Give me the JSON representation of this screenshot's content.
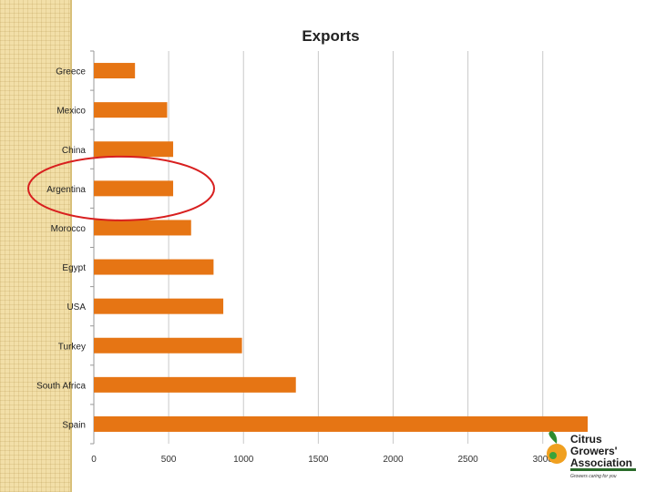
{
  "chart_data": {
    "type": "bar",
    "orientation": "horizontal",
    "title": "Exports",
    "xlabel": "",
    "ylabel": "",
    "categories": [
      "Greece",
      "Mexico",
      "China",
      "Argentina",
      "Morocco",
      "Egypt",
      "USA",
      "Turkey",
      "South Africa",
      "Spain"
    ],
    "values": [
      275,
      490,
      530,
      530,
      650,
      800,
      865,
      990,
      1350,
      3300
    ],
    "xlim": [
      0,
      3300
    ],
    "xticks": [
      "0",
      "500",
      "1000",
      "1500",
      "2000",
      "2500",
      "3000"
    ],
    "grid": "vertical",
    "legend": "none",
    "highlight": "Argentina"
  },
  "colors": {
    "bar": "#e67514",
    "highlight_ring": "#d81f1f",
    "grid": "#c9c9c9",
    "side_band": "#f2dfa8"
  },
  "logo": {
    "line1": "Citrus",
    "line2": "Growers'",
    "line3": "Association",
    "tagline": "Growers caring for you"
  }
}
